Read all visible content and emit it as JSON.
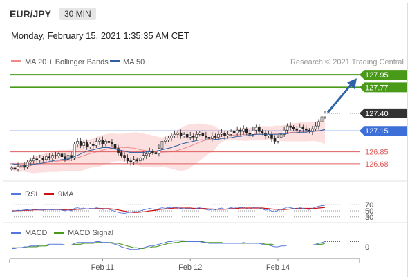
{
  "header": {
    "pair": "EUR/JPY",
    "timeframe": "30 MIN",
    "datetime": "Monday, February 15, 2021 1:35:35 AM CET"
  },
  "colors": {
    "green": "#4a9a1a",
    "blue": "#3d6fd8",
    "red": "#e05c5c",
    "dark": "#333333",
    "arrow": "#2e63a8",
    "band": "#fbd6d6",
    "ma50": "#2e5fa0",
    "ma20": "#f08a8a",
    "rsi": "#5577dd",
    "rsi_ma": "#cc1111",
    "macd": "#5577dd",
    "macd_signal": "#4a9a1a"
  },
  "chart_data": [
    {
      "type": "line",
      "panel": "price",
      "legend": [
        "MA 20 + Bollinger Bands",
        "MA 50"
      ],
      "copyright": "Research © 2021 Trading Central",
      "ylim": [
        126.55,
        128.05
      ],
      "levels": [
        {
          "value": 127.95,
          "label": "127.95",
          "style": "resistance"
        },
        {
          "value": 127.77,
          "label": "127.77",
          "style": "resistance"
        },
        {
          "value": 127.4,
          "label": "127.40",
          "style": "last"
        },
        {
          "value": 127.15,
          "label": "127.15",
          "style": "pivot"
        },
        {
          "value": 126.85,
          "label": "126.85",
          "style": "support"
        },
        {
          "value": 126.68,
          "label": "126.68",
          "style": "support"
        }
      ],
      "close": [
        126.62,
        126.6,
        126.64,
        126.66,
        126.63,
        126.7,
        126.72,
        126.75,
        126.73,
        126.76,
        126.74,
        126.78,
        126.76,
        126.8,
        126.79,
        126.82,
        126.78,
        126.74,
        126.8,
        126.76,
        126.96,
        127.0,
        126.94,
        126.98,
        126.92,
        126.96,
        126.94,
        127.0,
        127.02,
        126.96,
        127.0,
        126.98,
        126.96,
        126.9,
        126.84,
        126.8,
        126.76,
        126.72,
        126.7,
        126.74,
        126.72,
        126.76,
        126.8,
        126.82,
        126.86,
        126.84,
        126.82,
        126.9,
        127.0,
        127.02,
        127.05,
        127.08,
        127.1,
        127.12,
        127.08,
        127.1,
        127.06,
        127.08,
        127.06,
        127.1,
        127.12,
        127.08,
        127.06,
        127.04,
        127.08,
        127.06,
        127.1,
        127.12,
        127.08,
        127.1,
        127.14,
        127.12,
        127.16,
        127.14,
        127.18,
        127.12,
        127.1,
        127.16,
        127.2,
        127.14,
        127.12,
        127.08,
        127.1,
        127.04,
        127.0,
        127.06,
        127.1,
        127.16,
        127.22,
        127.2,
        127.18,
        127.16,
        127.2,
        127.18,
        127.16,
        127.14,
        127.18,
        127.22,
        127.28,
        127.35,
        127.4
      ],
      "ma50": [
        126.68,
        126.67,
        126.67,
        126.66,
        126.66,
        126.66,
        126.67,
        126.67,
        126.68,
        126.68,
        126.69,
        126.7,
        126.71,
        126.72,
        126.73,
        126.73,
        126.74,
        126.74,
        126.75,
        126.76,
        126.78,
        126.8,
        126.82,
        126.84,
        126.86,
        126.87,
        126.88,
        126.89,
        126.9,
        126.91,
        126.91,
        126.91,
        126.9,
        126.89,
        126.88,
        126.87,
        126.86,
        126.85,
        126.84,
        126.84,
        126.84,
        126.84,
        126.84,
        126.85,
        126.85,
        126.86,
        126.86,
        126.87,
        126.88,
        126.89,
        126.9,
        126.91,
        126.93,
        126.94,
        126.96,
        126.97,
        126.98,
        126.99,
        127.0,
        127.01,
        127.02,
        127.02,
        127.02,
        127.02,
        127.02,
        127.03,
        127.03,
        127.04,
        127.04,
        127.05,
        127.05,
        127.06,
        127.07,
        127.07,
        127.08,
        127.08,
        127.09,
        127.09,
        127.1,
        127.1,
        127.1,
        127.1,
        127.1,
        127.1,
        127.1,
        127.1,
        127.11,
        127.11,
        127.11,
        127.12,
        127.12,
        127.12,
        127.13,
        127.13,
        127.13,
        127.14,
        127.14,
        127.15,
        127.15,
        127.16,
        127.17
      ],
      "x_ticks": [
        {
          "label": "Feb 11",
          "index": 29
        },
        {
          "label": "Feb 12",
          "index": 57
        },
        {
          "label": "Feb 14",
          "index": 85
        }
      ]
    },
    {
      "type": "line",
      "panel": "rsi",
      "legend": [
        "RSI",
        "9MA"
      ],
      "ylim": [
        25,
        75
      ],
      "levels": [
        {
          "value": 70,
          "label": "70"
        },
        {
          "value": 50,
          "label": "50"
        },
        {
          "value": 30,
          "label": "30"
        }
      ],
      "rsi": [
        48,
        50,
        52,
        51,
        53,
        54,
        52,
        55,
        54,
        53,
        52,
        55,
        54,
        53,
        55,
        54,
        52,
        50,
        53,
        50,
        58,
        60,
        57,
        59,
        55,
        58,
        56,
        60,
        58,
        54,
        57,
        55,
        52,
        48,
        45,
        43,
        42,
        44,
        46,
        48,
        47,
        50,
        53,
        55,
        58,
        56,
        54,
        57,
        60,
        58,
        61,
        59,
        62,
        60,
        57,
        59,
        56,
        58,
        55,
        58,
        60,
        56,
        54,
        52,
        55,
        53,
        57,
        59,
        55,
        57,
        61,
        58,
        62,
        60,
        63,
        57,
        55,
        60,
        63,
        58,
        56,
        52,
        55,
        49,
        47,
        52,
        55,
        58,
        62,
        60,
        58,
        56,
        60,
        58,
        56,
        54,
        58,
        62,
        65,
        67,
        68
      ],
      "ma": [
        50,
        50,
        51,
        51,
        52,
        52,
        52,
        53,
        53,
        53,
        53,
        54,
        54,
        54,
        54,
        54,
        54,
        53,
        53,
        53,
        54,
        55,
        55,
        56,
        56,
        57,
        57,
        57,
        58,
        57,
        57,
        57,
        56,
        55,
        53,
        51,
        49,
        47,
        46,
        45,
        45,
        46,
        47,
        48,
        50,
        51,
        52,
        54,
        55,
        56,
        57,
        58,
        59,
        59,
        59,
        59,
        59,
        59,
        58,
        58,
        58,
        58,
        57,
        56,
        56,
        55,
        55,
        55,
        55,
        56,
        57,
        57,
        58,
        59,
        59,
        59,
        59,
        59,
        59,
        59,
        59,
        58,
        57,
        56,
        55,
        55,
        54,
        54,
        55,
        56,
        57,
        58,
        58,
        58,
        58,
        58,
        58,
        58,
        59,
        60,
        61
      ]
    },
    {
      "type": "line",
      "panel": "macd",
      "legend": [
        "MACD",
        "MACD Signal"
      ],
      "ylim": [
        -0.12,
        0.12
      ],
      "levels": [
        {
          "value": 0,
          "label": "0"
        }
      ],
      "macd": [
        -0.02,
        -0.02,
        -0.01,
        -0.01,
        0.0,
        0.0,
        0.01,
        0.01,
        0.01,
        0.02,
        0.02,
        0.02,
        0.03,
        0.03,
        0.03,
        0.03,
        0.03,
        0.02,
        0.02,
        0.02,
        0.04,
        0.05,
        0.05,
        0.05,
        0.05,
        0.05,
        0.05,
        0.06,
        0.06,
        0.05,
        0.05,
        0.05,
        0.04,
        0.03,
        0.02,
        0.0,
        -0.01,
        -0.02,
        -0.03,
        -0.03,
        -0.03,
        -0.02,
        -0.01,
        0.0,
        0.01,
        0.01,
        0.02,
        0.03,
        0.04,
        0.05,
        0.06,
        0.06,
        0.07,
        0.07,
        0.07,
        0.07,
        0.06,
        0.06,
        0.06,
        0.06,
        0.06,
        0.05,
        0.05,
        0.04,
        0.04,
        0.04,
        0.04,
        0.04,
        0.04,
        0.04,
        0.04,
        0.04,
        0.04,
        0.04,
        0.05,
        0.04,
        0.04,
        0.04,
        0.04,
        0.04,
        0.03,
        0.02,
        0.02,
        0.01,
        0.0,
        0.0,
        0.01,
        0.01,
        0.02,
        0.02,
        0.02,
        0.02,
        0.02,
        0.02,
        0.02,
        0.02,
        0.02,
        0.03,
        0.04,
        0.05,
        0.06
      ],
      "signal": [
        -0.01,
        -0.01,
        -0.01,
        -0.01,
        -0.01,
        0.0,
        0.0,
        0.0,
        0.0,
        0.01,
        0.01,
        0.01,
        0.02,
        0.02,
        0.02,
        0.02,
        0.02,
        0.02,
        0.02,
        0.02,
        0.03,
        0.03,
        0.03,
        0.04,
        0.04,
        0.04,
        0.04,
        0.05,
        0.05,
        0.05,
        0.05,
        0.05,
        0.05,
        0.04,
        0.04,
        0.03,
        0.02,
        0.01,
        0.0,
        -0.01,
        -0.01,
        -0.02,
        -0.02,
        -0.01,
        -0.01,
        0.0,
        0.0,
        0.01,
        0.02,
        0.03,
        0.04,
        0.04,
        0.05,
        0.05,
        0.06,
        0.06,
        0.06,
        0.06,
        0.06,
        0.06,
        0.06,
        0.06,
        0.05,
        0.05,
        0.05,
        0.05,
        0.05,
        0.05,
        0.04,
        0.04,
        0.04,
        0.04,
        0.04,
        0.04,
        0.04,
        0.04,
        0.04,
        0.04,
        0.04,
        0.04,
        0.04,
        0.03,
        0.03,
        0.03,
        0.02,
        0.02,
        0.02,
        0.02,
        0.02,
        0.02,
        0.02,
        0.02,
        0.02,
        0.02,
        0.02,
        0.02,
        0.02,
        0.02,
        0.03,
        0.03,
        0.04
      ]
    }
  ]
}
